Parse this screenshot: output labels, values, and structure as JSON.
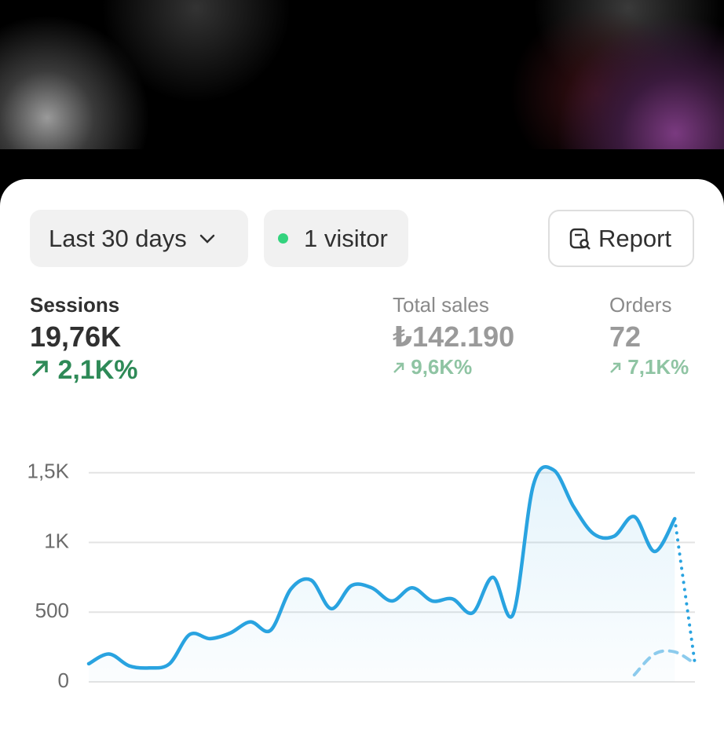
{
  "toolbar": {
    "date_range": "Last 30 days",
    "visitors": "1 visitor",
    "report": "Report"
  },
  "metrics": [
    {
      "label": "Sessions",
      "value": "19,76K",
      "change": "2,1K%"
    },
    {
      "label": "Total sales",
      "value": "₺142.190",
      "change": "9,6K%"
    },
    {
      "label": "Orders",
      "value": "72",
      "change": "7,1K%"
    }
  ],
  "chart_data": {
    "type": "line",
    "categories": [
      null,
      null,
      null,
      null,
      null,
      null,
      null,
      null,
      null,
      null,
      null,
      null,
      null,
      null,
      null,
      null,
      null,
      null,
      null,
      null,
      null,
      null,
      null,
      null,
      null,
      null,
      null,
      null,
      null,
      null,
      null
    ],
    "series": [
      {
        "color": "#29a3e0",
        "values": [
          130,
          200,
          115,
          100,
          130,
          340,
          310,
          350,
          430,
          370,
          665,
          730,
          525,
          690,
          675,
          580,
          675,
          580,
          595,
          495,
          750,
          485,
          1410,
          1520,
          1255,
          1060,
          1045,
          1185,
          935,
          1170,
          130
        ]
      },
      {
        "color": "#8ccbed",
        "values": [
          null,
          null,
          null,
          null,
          null,
          null,
          null,
          null,
          null,
          null,
          null,
          null,
          null,
          null,
          null,
          null,
          null,
          null,
          null,
          null,
          null,
          null,
          null,
          null,
          null,
          null,
          null,
          50,
          200,
          215,
          130
        ]
      }
    ],
    "ylim": [
      0,
      1600
    ],
    "yticks": [
      0,
      500,
      {
        "value": 1000,
        "label": "1K"
      },
      {
        "value": 1500,
        "label": "1,5K"
      }
    ],
    "grid": true
  }
}
